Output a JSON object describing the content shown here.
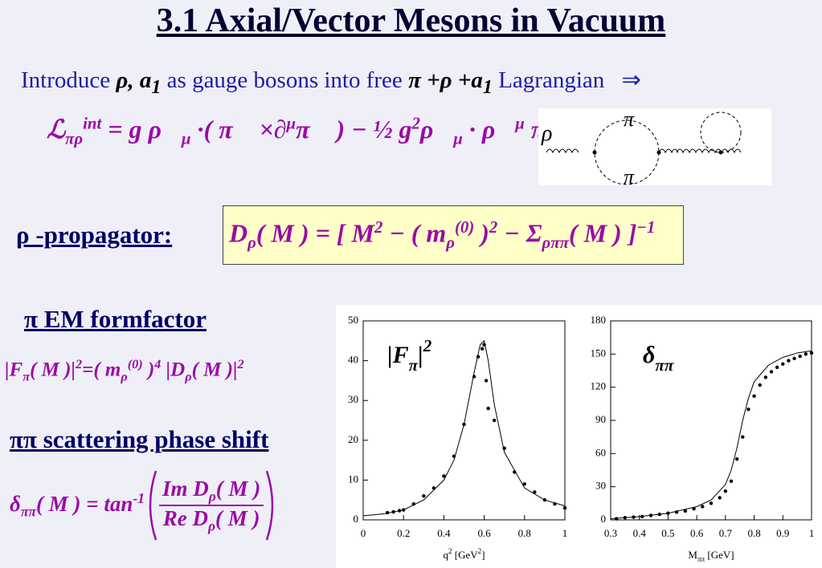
{
  "title": "3.1  Axial/Vector Mesons in Vacuum",
  "intro": {
    "text1": "Introduce ",
    "fields": "ρ, a",
    "fields_sub": "1",
    "text2": "  as gauge bosons into free ",
    "particles": "π +ρ +a",
    "particles_sub": "1",
    "text3": " Lagrangian",
    "arrow": "⇒"
  },
  "lagrangian": [
    {
      "base": "ℒ",
      "sub": "πρ",
      "sup": "int"
    },
    {
      "base": " = g ρ⃗",
      "sub": "μ"
    },
    {
      "base": " ·( π⃗ ×∂",
      "sup": "μ"
    },
    {
      "base": "π⃗ ) − ½ g",
      "sup": "2"
    },
    {
      "base": "ρ⃗",
      "sub": "μ"
    },
    {
      "base": " · ρ⃗",
      "sup": "μ"
    },
    {
      "base": " π⃗ · π⃗"
    }
  ],
  "diagram": {
    "rho": "ρ",
    "pi_top": "π",
    "pi_bottom": "π"
  },
  "propagator_heading": "ρ -propagator:",
  "propagator": [
    {
      "base": "D",
      "sub": "ρ"
    },
    {
      "base": "( M ) = [ M",
      "sup": "2"
    },
    {
      "base": " − ( m",
      "sub": "ρ",
      "sup": "(0)"
    },
    {
      "base": " )",
      "sup": "2"
    },
    {
      "base": " − Σ",
      "sub": "ρππ"
    },
    {
      "base": "( M ) ]",
      "sup": "−1"
    }
  ],
  "formfactor_heading": "π  EM formfactor",
  "formfactor": [
    {
      "base": "|F",
      "sub": "π"
    },
    {
      "base": "( M )|",
      "sup": "2"
    },
    {
      "base": "=( m",
      "sub": "ρ",
      "sup": "(0)"
    },
    {
      "base": " )",
      "sup": "4"
    },
    {
      "base": " |D",
      "sub": "ρ"
    },
    {
      "base": "( M )|",
      "sup": "2"
    }
  ],
  "phase_shift_heading": "ππ scattering phase shift",
  "phase_shift": {
    "lhs": [
      {
        "base": "δ",
        "sub": "ππ"
      },
      {
        "base": "( M ) = tan",
        "sup": "-1"
      }
    ],
    "numerator": [
      {
        "base": "Im D",
        "sub": "ρ"
      },
      {
        "base": "( M )"
      }
    ],
    "denominator": [
      {
        "base": "Re D",
        "sub": "ρ"
      },
      {
        "base": "( M )"
      }
    ]
  },
  "chart_data": [
    {
      "type": "scatter",
      "annotation": [
        {
          "base": "|F",
          "sub": "π"
        },
        {
          "base": "|",
          "sup": "2"
        }
      ],
      "xlabel": [
        {
          "base": "q",
          "sup": "2"
        },
        {
          "base": " [GeV",
          "sup": "2"
        },
        {
          "base": "]"
        }
      ],
      "xlim": [
        0,
        1
      ],
      "xticks": [
        0,
        0.2,
        0.4,
        0.6,
        0.8,
        1
      ],
      "ylim": [
        0,
        50
      ],
      "yticks": [
        0,
        10,
        20,
        30,
        40,
        50
      ],
      "series": [
        {
          "mode": "markers",
          "color": "#000",
          "x": [
            0.12,
            0.15,
            0.18,
            0.2,
            0.25,
            0.3,
            0.35,
            0.4,
            0.45,
            0.5,
            0.55,
            0.57,
            0.59,
            0.6,
            0.61,
            0.62,
            0.65,
            0.7,
            0.75,
            0.8,
            0.85,
            0.9,
            0.95,
            1.0
          ],
          "values": [
            1.8,
            2,
            2.3,
            2.5,
            4,
            6,
            8,
            11,
            16,
            24,
            36,
            41,
            43,
            44,
            35,
            28,
            25,
            18,
            12,
            9,
            7,
            5,
            4,
            3
          ]
        },
        {
          "mode": "line",
          "color": "#000",
          "x": [
            0,
            0.1,
            0.2,
            0.3,
            0.4,
            0.45,
            0.5,
            0.55,
            0.58,
            0.6,
            0.62,
            0.65,
            0.7,
            0.8,
            0.9,
            1.0
          ],
          "values": [
            1,
            1.5,
            2.5,
            5,
            10,
            15,
            24,
            37,
            44,
            45,
            40,
            29,
            17,
            8,
            5,
            3.5
          ]
        }
      ]
    },
    {
      "type": "scatter",
      "annotation": [
        {
          "base": "δ",
          "sub": "ππ"
        }
      ],
      "xlabel": [
        {
          "base": "M",
          "sub": "ππ"
        },
        {
          "base": " [GeV]"
        }
      ],
      "xlim": [
        0.3,
        1
      ],
      "xticks": [
        0.3,
        0.4,
        0.5,
        0.6,
        0.7,
        0.8,
        0.9,
        1
      ],
      "ylim": [
        0,
        180
      ],
      "yticks": [
        0,
        30,
        60,
        90,
        120,
        150,
        180
      ],
      "series": [
        {
          "mode": "markers",
          "color": "#000",
          "x": [
            0.32,
            0.35,
            0.38,
            0.41,
            0.44,
            0.47,
            0.5,
            0.53,
            0.56,
            0.59,
            0.62,
            0.65,
            0.68,
            0.7,
            0.72,
            0.74,
            0.76,
            0.78,
            0.8,
            0.82,
            0.84,
            0.86,
            0.88,
            0.9,
            0.92,
            0.94,
            0.96,
            0.98,
            1.0
          ],
          "values": [
            1,
            2,
            2.5,
            3,
            4,
            5,
            6,
            7,
            8,
            10,
            12,
            15,
            20,
            26,
            35,
            55,
            75,
            100,
            112,
            122,
            129,
            134,
            138,
            141,
            144,
            146,
            148,
            150,
            151
          ]
        },
        {
          "mode": "line",
          "color": "#000",
          "x": [
            0.3,
            0.4,
            0.5,
            0.6,
            0.65,
            0.7,
            0.72,
            0.74,
            0.76,
            0.78,
            0.8,
            0.85,
            0.9,
            0.95,
            1.0
          ],
          "values": [
            1,
            3,
            6,
            12,
            18,
            32,
            45,
            65,
            90,
            110,
            125,
            140,
            147,
            151,
            153
          ]
        }
      ]
    }
  ]
}
